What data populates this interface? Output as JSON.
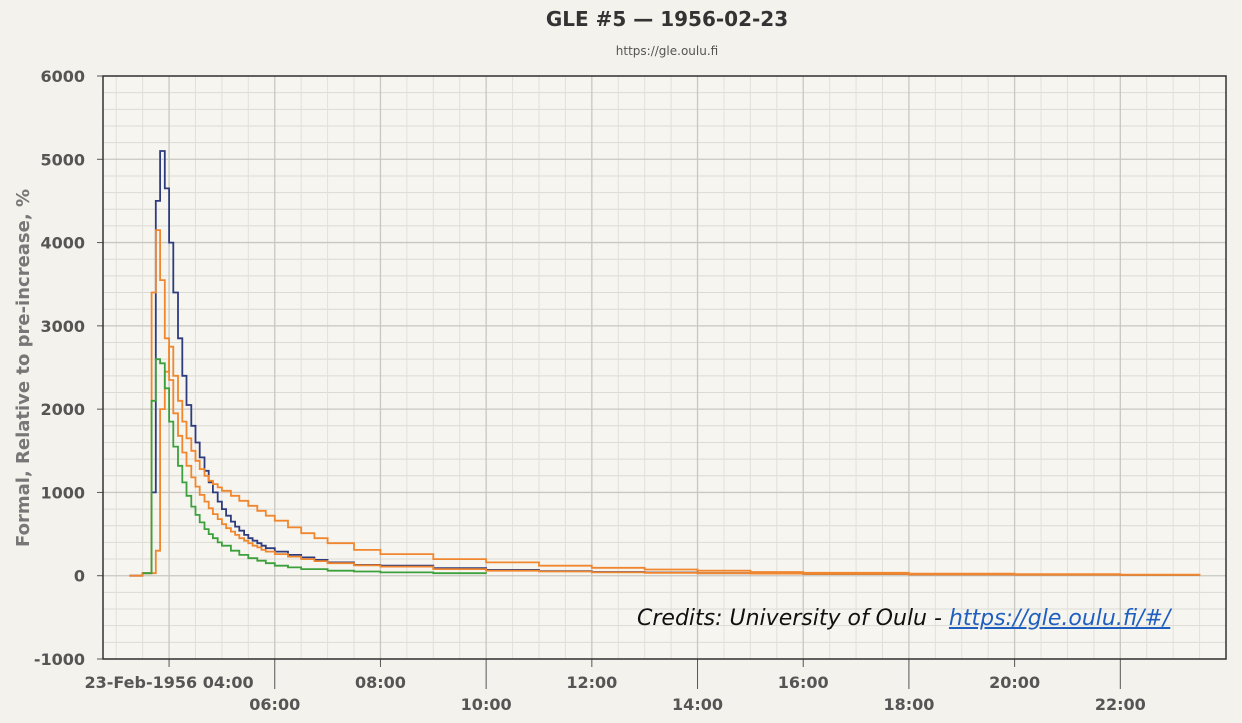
{
  "chart_data": {
    "type": "line",
    "title": "GLE #5 — 1956-02-23",
    "subtitle": "https://gle.oulu.fi",
    "ylabel": "Formal, Relative to pre-increase, %",
    "xlabel": "",
    "ylim": [
      -1000,
      6000
    ],
    "yticks": [
      "6000",
      "5000",
      "4000",
      "3000",
      "2000",
      "1000",
      "0",
      "-1000"
    ],
    "xrange_hours": [
      2.75,
      24.0
    ],
    "xticks": [
      {
        "h": 4,
        "label": "23-Feb-1956 04:00"
      },
      {
        "h": 6,
        "label": "06:00"
      },
      {
        "h": 8,
        "label": "08:00"
      },
      {
        "h": 10,
        "label": "10:00"
      },
      {
        "h": 12,
        "label": "12:00"
      },
      {
        "h": 14,
        "label": "14:00"
      },
      {
        "h": 16,
        "label": "16:00"
      },
      {
        "h": 18,
        "label": "18:00"
      },
      {
        "h": 20,
        "label": "20:00"
      },
      {
        "h": 22,
        "label": "22:00"
      }
    ],
    "grid": true,
    "step": true,
    "series": [
      {
        "color": "#2e3c7e",
        "x": [
          3.25,
          3.5,
          3.67,
          3.75,
          3.83,
          3.92,
          4.0,
          4.08,
          4.17,
          4.25,
          4.33,
          4.42,
          4.5,
          4.58,
          4.67,
          4.75,
          4.83,
          4.92,
          5.0,
          5.08,
          5.17,
          5.25,
          5.33,
          5.42,
          5.5,
          5.58,
          5.67,
          5.75,
          5.83,
          6.0,
          6.25,
          6.5,
          6.75,
          7.0,
          7.5,
          8.0,
          9.0,
          10.0,
          11.0,
          12.0,
          13.0,
          14.0,
          15.0,
          16.0,
          18.0,
          20.0,
          22.0,
          23.5
        ],
        "y": [
          0,
          30,
          1000,
          4500,
          5100,
          4650,
          4000,
          3400,
          2850,
          2400,
          2050,
          1800,
          1600,
          1420,
          1260,
          1120,
          1000,
          890,
          800,
          720,
          650,
          590,
          540,
          490,
          450,
          420,
          390,
          360,
          330,
          290,
          250,
          220,
          190,
          160,
          130,
          120,
          90,
          70,
          55,
          45,
          38,
          30,
          25,
          20,
          15,
          12,
          10,
          5
        ]
      },
      {
        "color": "#f0872e",
        "x": [
          3.25,
          3.5,
          3.67,
          3.75,
          3.83,
          3.92,
          4.0,
          4.08,
          4.17,
          4.25,
          4.33,
          4.42,
          4.5,
          4.58,
          4.67,
          4.75,
          4.83,
          4.92,
          5.0,
          5.08,
          5.17,
          5.25,
          5.33,
          5.42,
          5.5,
          5.58,
          5.67,
          5.75,
          5.83,
          6.0,
          6.25,
          6.5,
          6.75,
          7.0,
          7.5,
          8.0,
          9.0,
          10.0,
          11.0,
          12.0,
          13.0,
          14.0,
          15.0,
          16.0,
          18.0,
          20.0,
          22.0,
          23.5
        ],
        "y": [
          0,
          30,
          3400,
          4150,
          3550,
          2850,
          2350,
          1950,
          1680,
          1480,
          1320,
          1180,
          1070,
          970,
          890,
          810,
          740,
          680,
          620,
          570,
          530,
          490,
          450,
          420,
          390,
          360,
          340,
          310,
          290,
          260,
          230,
          200,
          175,
          150,
          125,
          110,
          80,
          60,
          50,
          40,
          35,
          30,
          25,
          20,
          15,
          12,
          10,
          5
        ]
      },
      {
        "color": "#f0872e",
        "x": [
          3.5,
          3.75,
          3.83,
          3.92,
          4.0,
          4.08,
          4.17,
          4.25,
          4.33,
          4.42,
          4.5,
          4.58,
          4.67,
          4.75,
          4.83,
          4.92,
          5.0,
          5.17,
          5.33,
          5.5,
          5.67,
          5.83,
          6.0,
          6.25,
          6.5,
          6.75,
          7.0,
          7.5,
          8.0,
          9.0,
          10.0,
          11.0,
          12.0,
          13.0,
          14.0,
          15.0,
          16.0,
          18.0,
          20.0,
          22.0,
          23.5
        ],
        "y": [
          30,
          300,
          2000,
          2450,
          2750,
          2400,
          2100,
          1850,
          1650,
          1500,
          1380,
          1280,
          1200,
          1140,
          1100,
          1060,
          1020,
          960,
          900,
          840,
          780,
          720,
          660,
          580,
          510,
          450,
          390,
          310,
          260,
          200,
          160,
          120,
          95,
          75,
          60,
          45,
          35,
          25,
          18,
          12,
          5
        ]
      },
      {
        "color": "#3ca03c",
        "x": [
          3.5,
          3.67,
          3.75,
          3.83,
          3.92,
          4.0,
          4.08,
          4.17,
          4.25,
          4.33,
          4.42,
          4.5,
          4.58,
          4.67,
          4.75,
          4.83,
          4.92,
          5.0,
          5.17,
          5.33,
          5.5,
          5.67,
          5.83,
          6.0,
          6.25,
          6.5,
          7.0,
          7.5,
          8.0,
          9.0,
          10.0
        ],
        "y": [
          30,
          2100,
          2600,
          2550,
          2250,
          1850,
          1550,
          1320,
          1120,
          960,
          830,
          730,
          640,
          560,
          500,
          450,
          400,
          360,
          300,
          250,
          210,
          180,
          150,
          120,
          100,
          80,
          60,
          50,
          40,
          30,
          25
        ]
      }
    ]
  },
  "credits": {
    "prefix": "Credits: University of Oulu - ",
    "link": "https://gle.oulu.fi/#/"
  }
}
